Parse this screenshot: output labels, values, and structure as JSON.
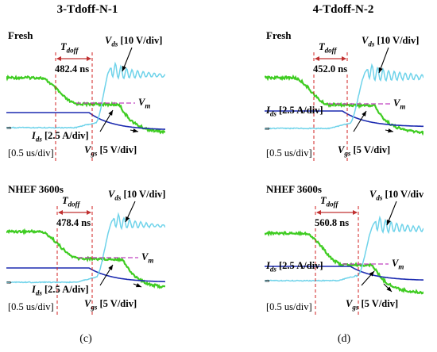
{
  "column_titles": [
    "3-Tdoff-N-1",
    "4-Tdoff-N-2"
  ],
  "subcaptions": [
    "(c)",
    "(d)"
  ],
  "colors": {
    "vds": "#6fd3ea",
    "vgs": "#3fcc22",
    "ids": "#1b2ab0",
    "vm": "#c040c0",
    "marker": "#d02020",
    "arrow": "#c03030"
  },
  "labels": {
    "vds_scale": "[10 V/div]",
    "vgs_scale": "[5 V/div]",
    "ids_scale": "[2.5 A/div]",
    "time_scale": "[0.5 us/div]",
    "vm": "m"
  },
  "chart_data": [
    {
      "type": "line",
      "panel": "top-left",
      "condition": "Fresh",
      "tdoff_ns": "482.4 ns",
      "series": [
        {
          "name": "Vds",
          "scale": "10 V/div"
        },
        {
          "name": "Vgs",
          "scale": "5 V/div"
        },
        {
          "name": "Ids",
          "scale": "2.5 A/div"
        }
      ],
      "time_scale": "0.5 us/div"
    },
    {
      "type": "line",
      "panel": "top-right",
      "condition": "Fresh",
      "tdoff_ns": "452.0 ns",
      "series": [
        {
          "name": "Vds",
          "scale": "10 V/div"
        },
        {
          "name": "Vgs",
          "scale": "5 V/div"
        },
        {
          "name": "Ids",
          "scale": "2.5 A/div"
        }
      ],
      "time_scale": "0.5 us/div"
    },
    {
      "type": "line",
      "panel": "bottom-left",
      "condition": "NHEF 3600s",
      "tdoff_ns": "478.4 ns",
      "series": [
        {
          "name": "Vds",
          "scale": "10 V/div"
        },
        {
          "name": "Vgs",
          "scale": "5 V/div"
        },
        {
          "name": "Ids",
          "scale": "2.5 A/div"
        }
      ],
      "time_scale": "0.5 us/div"
    },
    {
      "type": "line",
      "panel": "bottom-right",
      "condition": "NHEF 3600s",
      "tdoff_ns": "560.8 ns",
      "series": [
        {
          "name": "Vds",
          "scale": "10 V/div"
        },
        {
          "name": "Vgs",
          "scale": "5 V/div"
        },
        {
          "name": "Ids",
          "scale": "2.5 A/div"
        }
      ],
      "time_scale": "0.5 us/div"
    }
  ]
}
